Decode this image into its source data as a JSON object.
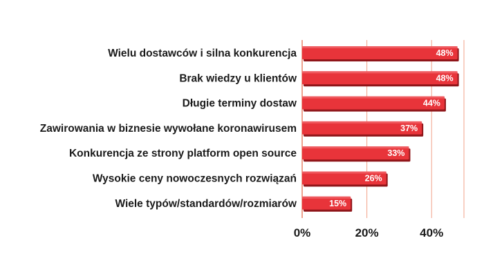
{
  "chart_data": {
    "type": "bar",
    "orientation": "horizontal",
    "categories": [
      "Wielu dostawców i silna konkurencja",
      "Brak wiedzy u klientów",
      "Długie terminy dostaw",
      "Zawirowania w biznesie wywołane koronawirusem",
      "Konkurencja ze strony platform open source",
      "Wysokie ceny nowoczesnych rozwiązań",
      "Wiele typów/standardów/rozmiarów"
    ],
    "values": [
      48,
      48,
      44,
      37,
      33,
      26,
      15
    ],
    "value_labels": [
      "48%",
      "48%",
      "44%",
      "37%",
      "33%",
      "26%",
      "15%"
    ],
    "xlim": [
      0,
      50
    ],
    "x_ticks": [
      0,
      20,
      40
    ],
    "x_tick_labels": [
      "0%",
      "20%",
      "40%"
    ],
    "grid": true,
    "colors": {
      "bar": "#e8343a",
      "bar_shadow": "#8f1519",
      "grid": "#f2a189",
      "axis": "#e8836a",
      "value_text": "#ffffff"
    }
  }
}
